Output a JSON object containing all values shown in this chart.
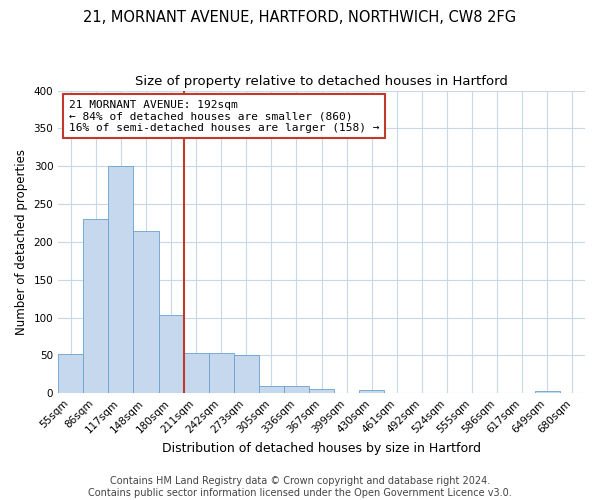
{
  "title1": "21, MORNANT AVENUE, HARTFORD, NORTHWICH, CW8 2FG",
  "title2": "Size of property relative to detached houses in Hartford",
  "xlabel": "Distribution of detached houses by size in Hartford",
  "ylabel": "Number of detached properties",
  "categories": [
    "55sqm",
    "86sqm",
    "117sqm",
    "148sqm",
    "180sqm",
    "211sqm",
    "242sqm",
    "273sqm",
    "305sqm",
    "336sqm",
    "367sqm",
    "399sqm",
    "430sqm",
    "461sqm",
    "492sqm",
    "524sqm",
    "555sqm",
    "586sqm",
    "617sqm",
    "649sqm",
    "680sqm"
  ],
  "values": [
    52,
    230,
    300,
    215,
    103,
    53,
    53,
    50,
    10,
    10,
    6,
    0,
    4,
    0,
    0,
    0,
    0,
    0,
    0,
    3,
    0
  ],
  "bar_color": "#c5d8ee",
  "bar_edgecolor": "#6aa0cd",
  "highlight_color": "#c0392b",
  "vline_x_index": 4,
  "annotation_text": "21 MORNANT AVENUE: 192sqm\n← 84% of detached houses are smaller (860)\n16% of semi-detached houses are larger (158) →",
  "annotation_box_facecolor": "#ffffff",
  "annotation_box_edgecolor": "#c0392b",
  "ylim": [
    0,
    400
  ],
  "yticks": [
    0,
    50,
    100,
    150,
    200,
    250,
    300,
    350,
    400
  ],
  "footnote": "Contains HM Land Registry data © Crown copyright and database right 2024.\nContains public sector information licensed under the Open Government Licence v3.0.",
  "fig_bg_color": "#ffffff",
  "plot_bg_color": "#ffffff",
  "grid_color": "#c8d8e8",
  "title1_fontsize": 10.5,
  "title2_fontsize": 9.5,
  "xlabel_fontsize": 9,
  "ylabel_fontsize": 8.5,
  "tick_fontsize": 7.5,
  "annotation_fontsize": 8,
  "footnote_fontsize": 7
}
